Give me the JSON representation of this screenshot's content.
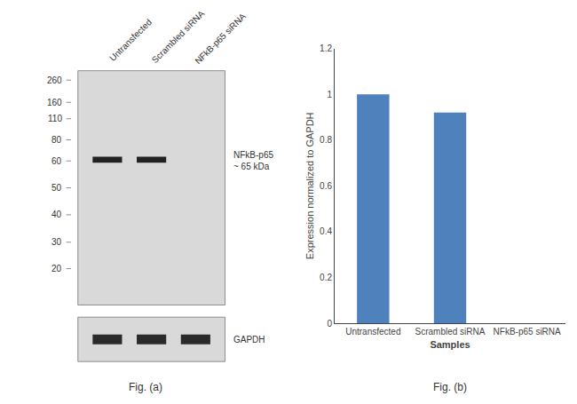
{
  "chart_data": {
    "type": "bar",
    "categories": [
      "Untransfected",
      "Scrambled siRNA",
      "NFkB-p65 siRNA"
    ],
    "values": [
      1.0,
      0.92,
      0.0
    ],
    "color": "#4f81bd",
    "xlabel": "Samples",
    "ylabel": "Expression normalized to GAPDH",
    "ylim": [
      0,
      1.2
    ],
    "yticks": [
      0,
      0.2,
      0.4,
      0.6,
      0.8,
      1,
      1.2
    ],
    "grid": false,
    "annotations": [
      "Untransfected",
      "Scrambled siRNA",
      "NFkB-p65 siRNA",
      "260",
      "160",
      "110",
      "80",
      "60",
      "50",
      "40",
      "30",
      "20",
      "NFkB-p65\n~ 65 kDa",
      "GAPDH",
      "Fig. (a)",
      "Fig. (b)"
    ]
  }
}
